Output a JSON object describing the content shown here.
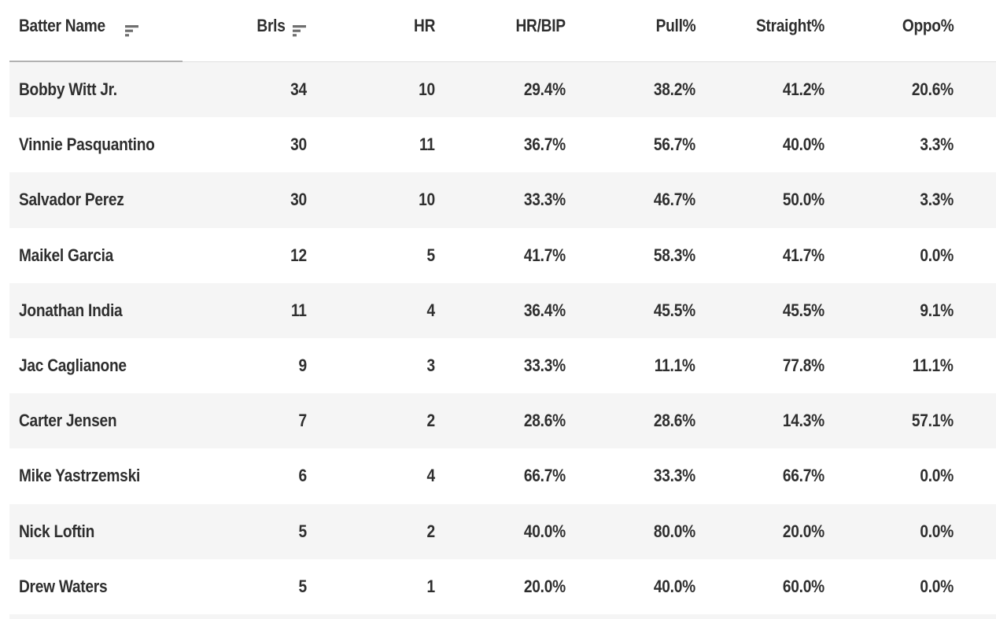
{
  "table": {
    "columns": [
      {
        "label": "Batter Name",
        "align": "left",
        "sortable": true,
        "icon": "sort-icon"
      },
      {
        "label": "Brls",
        "align": "right",
        "sortable": true,
        "icon": "sort-icon"
      },
      {
        "label": "HR",
        "align": "right",
        "sortable": true
      },
      {
        "label": "HR/BIP",
        "align": "right",
        "sortable": true
      },
      {
        "label": "Pull%",
        "align": "right",
        "sortable": true
      },
      {
        "label": "Straight%",
        "align": "right",
        "sortable": true
      },
      {
        "label": "Oppo%",
        "align": "right",
        "sortable": true
      }
    ],
    "rows": [
      [
        "Bobby Witt Jr.",
        "34",
        "10",
        "29.4%",
        "38.2%",
        "41.2%",
        "20.6%"
      ],
      [
        "Vinnie Pasquantino",
        "30",
        "11",
        "36.7%",
        "56.7%",
        "40.0%",
        "3.3%"
      ],
      [
        "Salvador Perez",
        "30",
        "10",
        "33.3%",
        "46.7%",
        "50.0%",
        "3.3%"
      ],
      [
        "Maikel Garcia",
        "12",
        "5",
        "41.7%",
        "58.3%",
        "41.7%",
        "0.0%"
      ],
      [
        "Jonathan India",
        "11",
        "4",
        "36.4%",
        "45.5%",
        "45.5%",
        "9.1%"
      ],
      [
        "Jac Caglianone",
        "9",
        "3",
        "33.3%",
        "11.1%",
        "77.8%",
        "11.1%"
      ],
      [
        "Carter Jensen",
        "7",
        "2",
        "28.6%",
        "28.6%",
        "14.3%",
        "57.1%"
      ],
      [
        "Mike Yastrzemski",
        "6",
        "4",
        "66.7%",
        "33.3%",
        "66.7%",
        "0.0%"
      ],
      [
        "Nick Loftin",
        "5",
        "2",
        "40.0%",
        "80.0%",
        "20.0%",
        "0.0%"
      ],
      [
        "Drew Waters",
        "5",
        "1",
        "20.0%",
        "40.0%",
        "60.0%",
        "0.0%"
      ]
    ],
    "partial_row_at_bottom": true
  },
  "colors": {
    "row_stripe": "#f5f5f5",
    "row_plain": "#ffffff",
    "text": "#2e2e2e",
    "sort_icon": "#6f6f6f",
    "first_column_underline": "#b1b1b1",
    "header_border": "#e0e0e0"
  }
}
